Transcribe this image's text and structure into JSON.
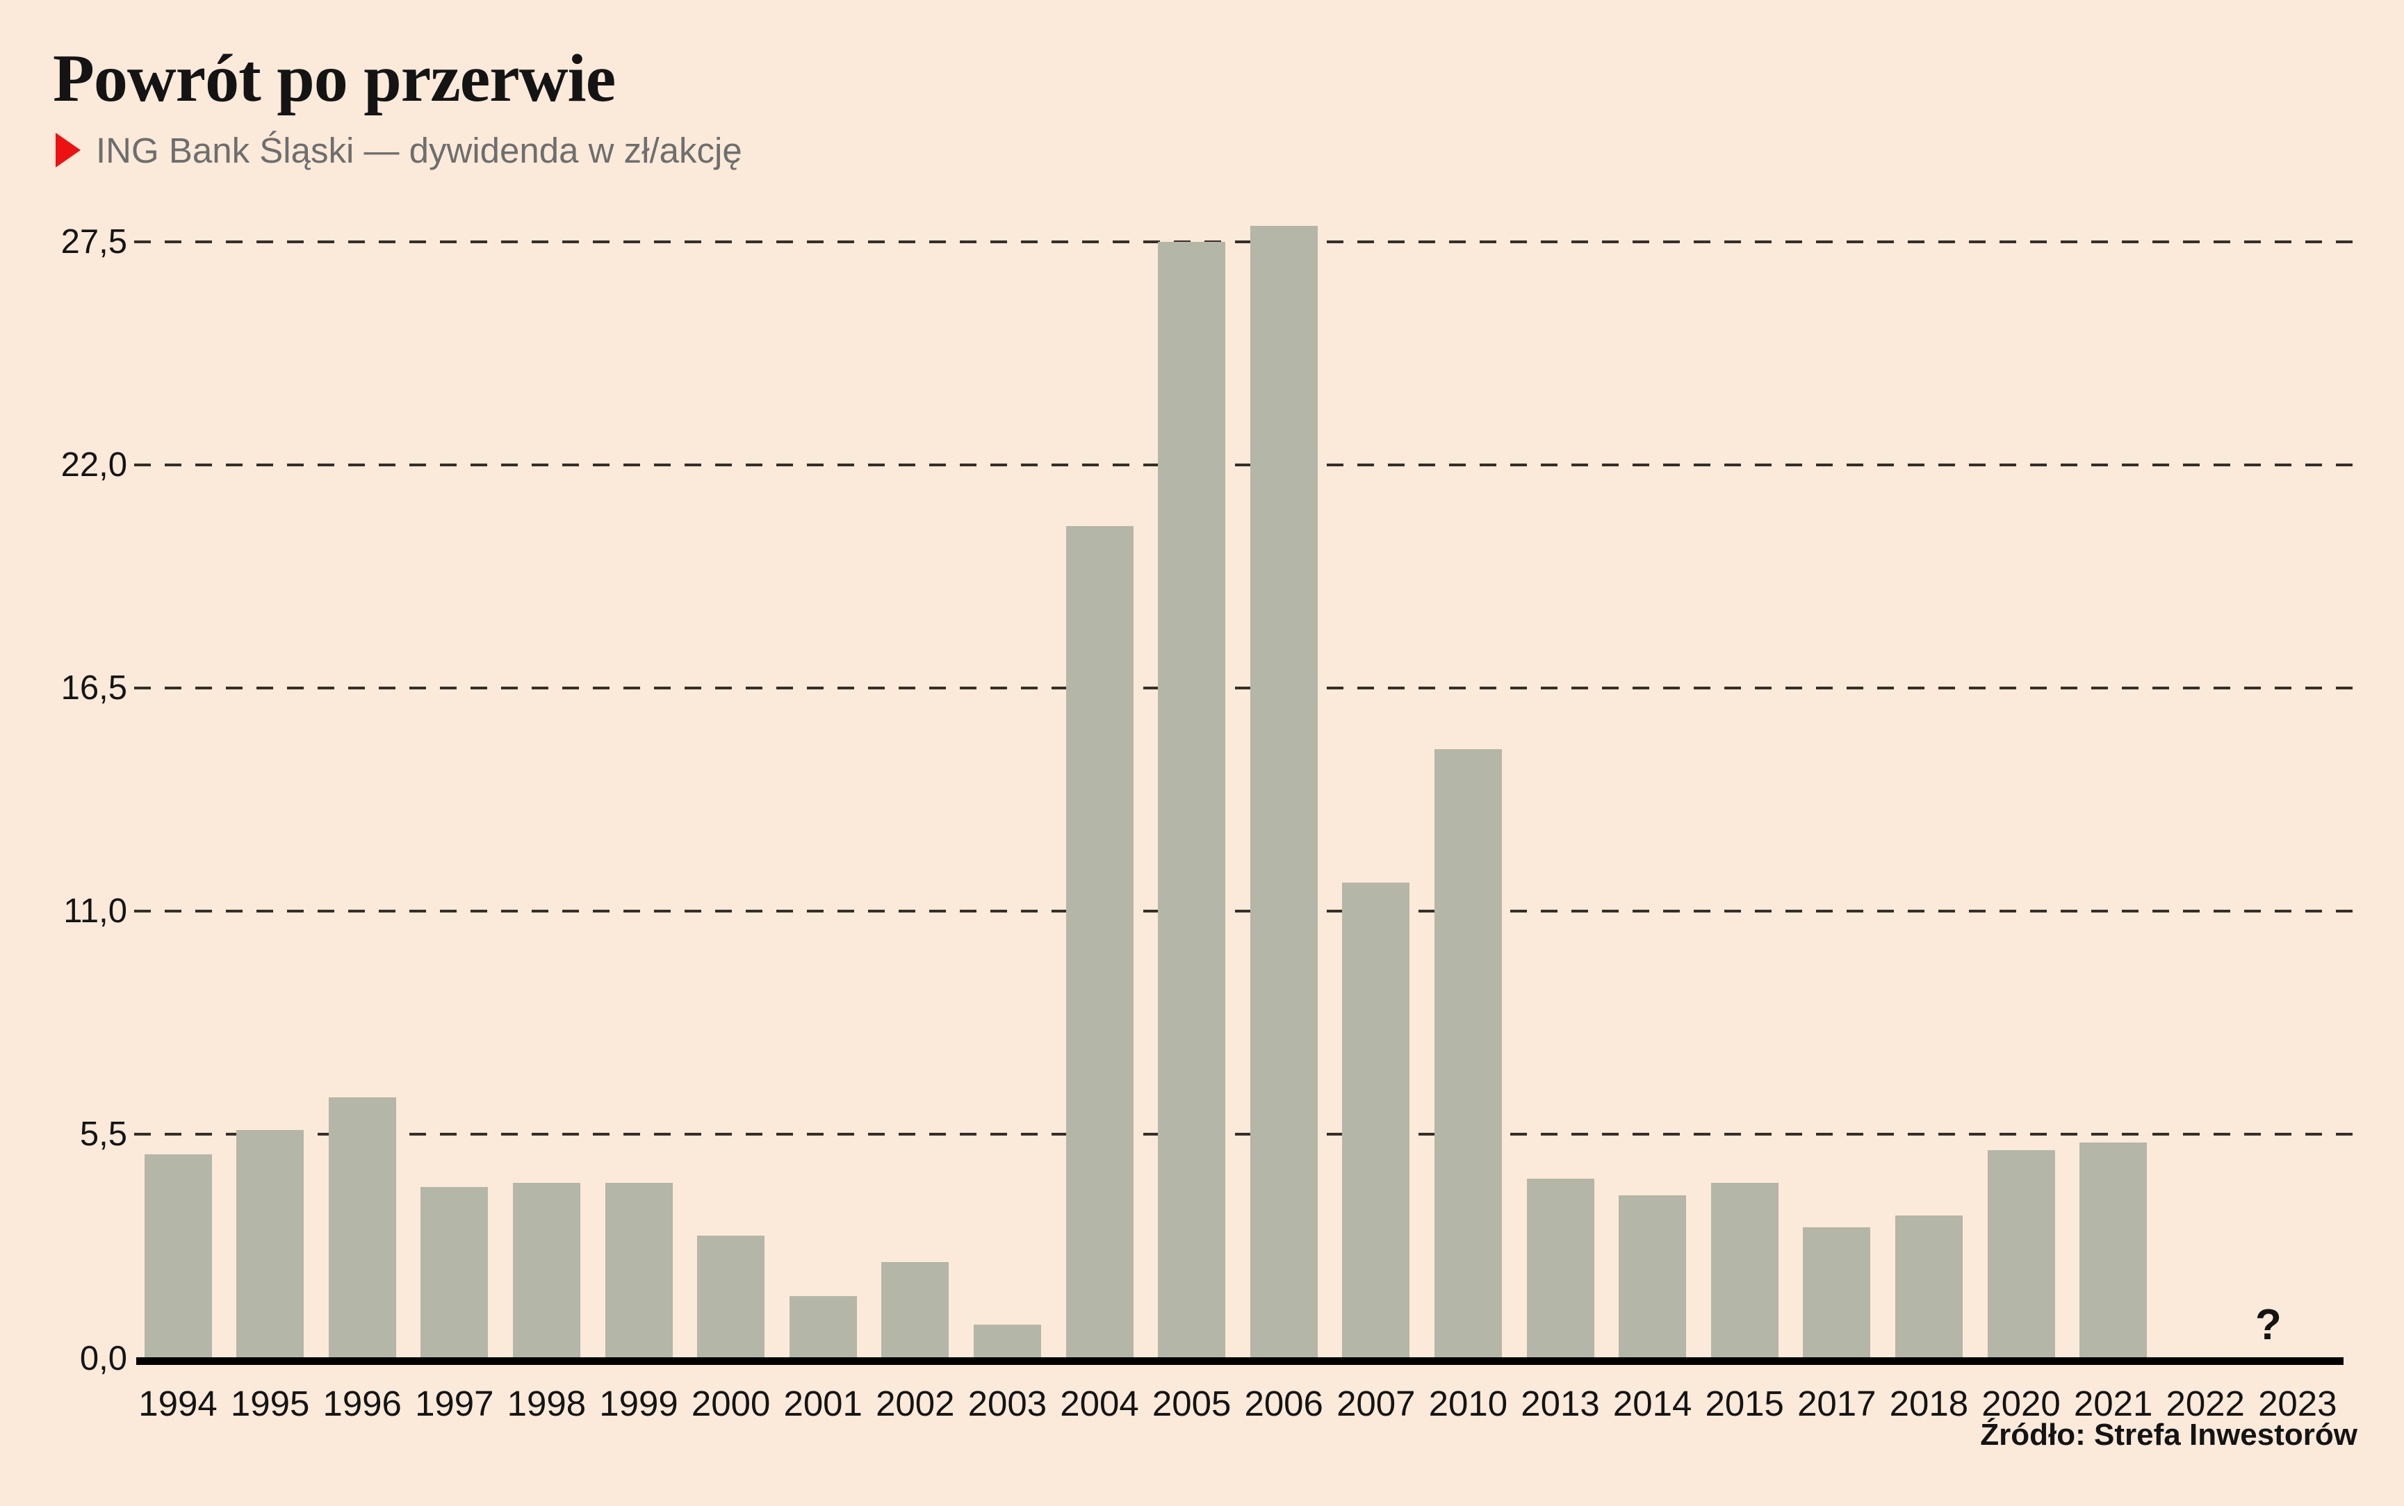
{
  "header": {
    "title": "Powrót po przerwie",
    "subtitle": "ING Bank Śląski — dywidenda w zł/akcję"
  },
  "footer": {
    "source": "Źródło: Strefa Inwestorów"
  },
  "chart_data": {
    "type": "bar",
    "title": "Powrót po przerwie",
    "subtitle": "ING Bank Śląski — dywidenda w zł/akcję",
    "source": "Źródło: Strefa Inwestorów",
    "categories": [
      "1994",
      "1995",
      "1996",
      "1997",
      "1998",
      "1999",
      "2000",
      "2001",
      "2002",
      "2003",
      "2004",
      "2005",
      "2006",
      "2007",
      "2010",
      "2013",
      "2014",
      "2015",
      "2017",
      "2018",
      "2020",
      "2021",
      "2022",
      "2023"
    ],
    "values": [
      5.0,
      5.6,
      6.4,
      4.2,
      4.3,
      4.3,
      3.0,
      1.5,
      2.35,
      0.8,
      20.5,
      27.5,
      27.9,
      11.7,
      15.0,
      4.4,
      4.0,
      4.3,
      3.2,
      3.5,
      5.1,
      5.3,
      null,
      null
    ],
    "unit": "zł/akcję",
    "ytick_labels": [
      "27,5",
      "22,0",
      "16,5",
      "11,0",
      "5,5",
      "0,0"
    ],
    "ytick_values": [
      27.5,
      22.0,
      16.5,
      11.0,
      5.5,
      0.0
    ],
    "ylim": [
      0,
      28.3
    ],
    "grid": "dashed-horizontal",
    "legend_position": "none",
    "annotations": [
      {
        "category": "2023",
        "text": "?"
      }
    ],
    "colors": {
      "background": "#fbead9",
      "bar": "#b4b6a7",
      "accent_marker": "#ee1111",
      "gridline": "#352f29",
      "axis": "#000000",
      "title_text": "#141414",
      "subtitle_text": "#6e6e6e"
    }
  }
}
